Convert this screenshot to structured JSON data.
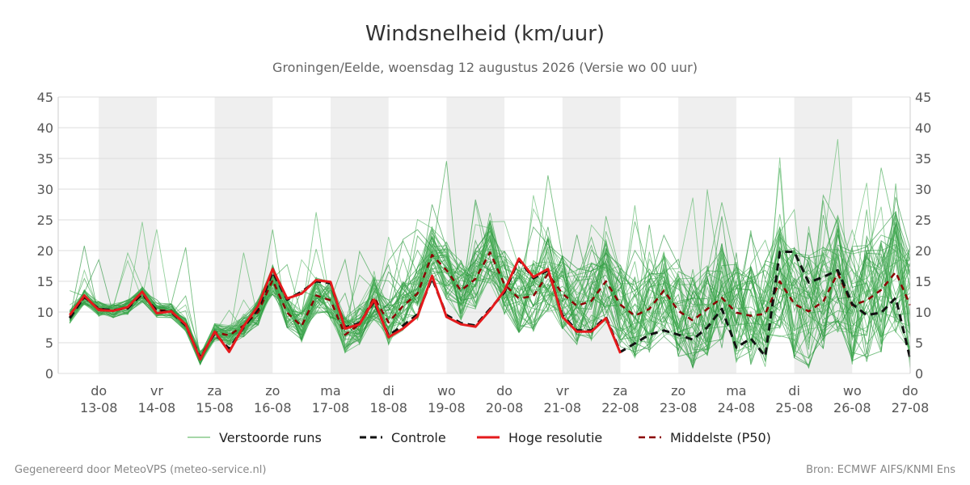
{
  "chart_data": {
    "type": "line",
    "title": "Windsnelheid (km/uur)",
    "subtitle": "Groningen/Eelde, woensdag 12 augustus 2026 (Versie wo 00 uur)",
    "ylim": [
      0,
      45
    ],
    "yticks": [
      0,
      5,
      10,
      15,
      20,
      25,
      30,
      35,
      40,
      45
    ],
    "xlim_days": [
      12.3,
      27.0
    ],
    "x_ticks": [
      {
        "day": "do",
        "date": "13-08"
      },
      {
        "day": "vr",
        "date": "14-08"
      },
      {
        "day": "za",
        "date": "15-08"
      },
      {
        "day": "zo",
        "date": "16-08"
      },
      {
        "day": "ma",
        "date": "17-08"
      },
      {
        "day": "di",
        "date": "18-08"
      },
      {
        "day": "wo",
        "date": "19-08"
      },
      {
        "day": "do",
        "date": "20-08"
      },
      {
        "day": "vr",
        "date": "21-08"
      },
      {
        "day": "za",
        "date": "22-08"
      },
      {
        "day": "zo",
        "date": "23-08"
      },
      {
        "day": "ma",
        "date": "24-08"
      },
      {
        "day": "di",
        "date": "25-08"
      },
      {
        "day": "wo",
        "date": "26-08"
      },
      {
        "day": "do",
        "date": "27-08"
      }
    ],
    "grid": true,
    "legend_placement": "bottom",
    "legend": [
      {
        "label": "Verstoorde runs",
        "style": "thin",
        "color": "#4caf50"
      },
      {
        "label": "Controle",
        "style": "dashed",
        "color": "#111111"
      },
      {
        "label": "Hoge resolutie",
        "style": "solid",
        "color": "#e41a1c"
      },
      {
        "label": "Middelste (P50)",
        "style": "dashed",
        "color": "#8b0000"
      }
    ],
    "series": [
      {
        "name": "Hoge resolutie",
        "color": "#e41a1c",
        "x": [
          12.5,
          12.75,
          13.0,
          13.25,
          13.5,
          13.75,
          14.0,
          14.25,
          14.5,
          14.75,
          15.0,
          15.25,
          15.5,
          15.75,
          16.0,
          16.25,
          16.5,
          16.75,
          17.0,
          17.25,
          17.5,
          17.75,
          18.0,
          18.25,
          18.5,
          18.75,
          19.0,
          19.25,
          19.5,
          19.75,
          20.0,
          20.25,
          20.5,
          20.75,
          21.0,
          21.25,
          21.5,
          21.75,
          22.0
        ],
        "values": [
          9.5,
          12.7,
          10.3,
          10.2,
          10.8,
          13.3,
          9.8,
          10.1,
          8.0,
          2.3,
          6.8,
          3.5,
          7.7,
          11.0,
          17.0,
          12.2,
          13.0,
          15.2,
          14.9,
          7.3,
          8.0,
          12.0,
          5.9,
          7.3,
          9.3,
          15.9,
          9.2,
          8.0,
          7.6,
          10.3,
          13.5,
          18.7,
          15.7,
          17.0,
          9.2,
          6.8,
          6.8,
          9.0,
          3.3
        ]
      },
      {
        "name": "Controle",
        "color": "#111111",
        "x": [
          12.5,
          12.75,
          13.0,
          13.25,
          13.5,
          13.75,
          14.0,
          14.25,
          14.5,
          14.75,
          15.0,
          15.25,
          15.5,
          15.75,
          16.0,
          16.25,
          16.5,
          16.75,
          17.0,
          17.25,
          17.5,
          17.75,
          18.0,
          18.25,
          18.5,
          18.75,
          19.0,
          19.25,
          19.5,
          19.75,
          20.0,
          20.25,
          20.5,
          20.75,
          21.0,
          21.25,
          21.5,
          21.75,
          22.0,
          22.25,
          22.5,
          22.75,
          23.0,
          23.25,
          23.5,
          23.75,
          24.0,
          24.25,
          24.5,
          24.75,
          25.0,
          25.25,
          25.5,
          25.75,
          26.0,
          26.25,
          26.5,
          26.75,
          27.0
        ],
        "values": [
          9.0,
          12.5,
          10.5,
          10.3,
          10.6,
          13.0,
          10.2,
          10.0,
          7.8,
          2.6,
          6.5,
          4.0,
          7.5,
          10.5,
          16.5,
          12.0,
          13.3,
          15.0,
          14.7,
          7.5,
          8.2,
          11.7,
          6.2,
          7.8,
          9.6,
          15.5,
          9.5,
          8.2,
          7.8,
          10.5,
          13.2,
          18.5,
          15.5,
          16.8,
          9.5,
          7.0,
          7.0,
          9.2,
          3.5,
          4.9,
          6.3,
          7.0,
          6.3,
          5.5,
          7.5,
          10.5,
          4.2,
          5.7,
          2.8,
          19.8,
          19.8,
          14.8,
          15.7,
          16.8,
          11.3,
          9.5,
          9.9,
          12.3,
          2.4
        ]
      },
      {
        "name": "Middelste (P50)",
        "color": "#8b0000",
        "x": [
          12.5,
          12.75,
          13.0,
          13.25,
          13.5,
          13.75,
          14.0,
          14.25,
          14.5,
          14.75,
          15.0,
          15.25,
          15.5,
          15.75,
          16.0,
          16.25,
          16.5,
          16.75,
          17.0,
          17.25,
          17.5,
          17.75,
          18.0,
          18.25,
          18.5,
          18.75,
          19.0,
          19.25,
          19.5,
          19.75,
          20.0,
          20.25,
          20.5,
          20.75,
          21.0,
          21.25,
          21.5,
          21.75,
          22.0,
          22.25,
          22.5,
          22.75,
          23.0,
          23.25,
          23.5,
          23.75,
          24.0,
          24.25,
          24.5,
          24.75,
          25.0,
          25.25,
          25.5,
          25.75,
          26.0,
          26.25,
          26.5,
          26.75,
          27.0
        ],
        "values": [
          9.2,
          12.4,
          10.5,
          10.2,
          10.8,
          12.8,
          10.3,
          10.2,
          7.9,
          2.5,
          6.7,
          6.2,
          7.8,
          10.0,
          15.2,
          9.9,
          7.7,
          12.7,
          11.9,
          6.3,
          8.0,
          12.4,
          8.3,
          11.0,
          13.0,
          19.3,
          16.8,
          13.5,
          15.4,
          19.7,
          14.5,
          12.2,
          12.6,
          16.2,
          13.0,
          11.0,
          11.8,
          15.0,
          11.2,
          9.4,
          10.5,
          13.5,
          10.2,
          8.6,
          10.5,
          12.3,
          9.9,
          9.4,
          9.7,
          15.0,
          11.3,
          10.1,
          11.7,
          16.3,
          11.1,
          11.9,
          13.6,
          16.5,
          11.1
        ]
      }
    ],
    "ensemble_member_count": 50
  },
  "footer": {
    "left": "Gegenereerd door MeteoVPS (meteo-service.nl)",
    "right": "Bron: ECMWF AIFS/KNMI Ens"
  }
}
